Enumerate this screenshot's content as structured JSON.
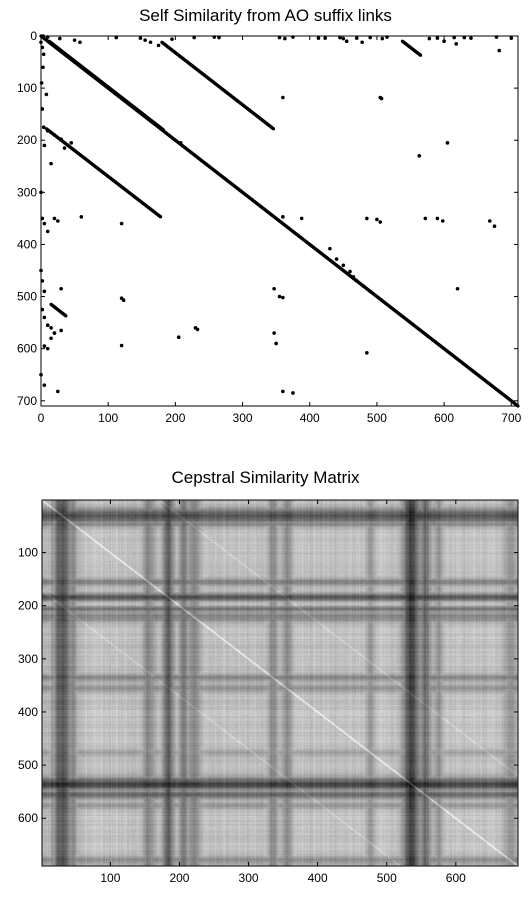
{
  "chart_data": [
    {
      "type": "scatter",
      "title": "Self Similarity from AO suffix links",
      "xlabel": "",
      "ylabel": "",
      "xlim": [
        0,
        710
      ],
      "ylim": [
        0,
        710
      ],
      "y_axis_inverted": true,
      "grid": false,
      "xticks": [
        "0",
        "100",
        "200",
        "300",
        "400",
        "500",
        "600",
        "700"
      ],
      "yticks": [
        "0",
        "100",
        "200",
        "300",
        "400",
        "500",
        "600",
        "700"
      ],
      "segments": [
        {
          "name": "",
          "x0": 0,
          "y0": 0,
          "x1": 710,
          "y1": 710
        },
        {
          "name": "",
          "x0": 12,
          "y0": 10,
          "x1": 182,
          "y1": 180
        },
        {
          "name": "",
          "x0": 180,
          "y0": 12,
          "x1": 346,
          "y1": 178
        },
        {
          "name": "",
          "x0": 8,
          "y0": 178,
          "x1": 178,
          "y1": 347
        },
        {
          "name": "",
          "x0": 538,
          "y0": 10,
          "x1": 565,
          "y1": 37
        },
        {
          "name": "",
          "x0": 15,
          "y0": 515,
          "x1": 37,
          "y1": 537
        }
      ],
      "points": [
        [
          3,
          0
        ],
        [
          10,
          2
        ],
        [
          28,
          5
        ],
        [
          50,
          8
        ],
        [
          58,
          12
        ],
        [
          112,
          3
        ],
        [
          148,
          4
        ],
        [
          155,
          8
        ],
        [
          163,
          12
        ],
        [
          175,
          18
        ],
        [
          195,
          6
        ],
        [
          228,
          3
        ],
        [
          258,
          2
        ],
        [
          265,
          3
        ],
        [
          355,
          3
        ],
        [
          363,
          5
        ],
        [
          375,
          2
        ],
        [
          413,
          4
        ],
        [
          423,
          4
        ],
        [
          445,
          3
        ],
        [
          450,
          5
        ],
        [
          455,
          10
        ],
        [
          470,
          4
        ],
        [
          478,
          12
        ],
        [
          490,
          3
        ],
        [
          508,
          5
        ],
        [
          515,
          2
        ],
        [
          578,
          5
        ],
        [
          590,
          4
        ],
        [
          600,
          10
        ],
        [
          615,
          3
        ],
        [
          618,
          15
        ],
        [
          630,
          3
        ],
        [
          640,
          4
        ],
        [
          678,
          2
        ],
        [
          682,
          28
        ],
        [
          700,
          4
        ],
        [
          0,
          12
        ],
        [
          2,
          22
        ],
        [
          4,
          35
        ],
        [
          3,
          60
        ],
        [
          1,
          90
        ],
        [
          8,
          112
        ],
        [
          2,
          140
        ],
        [
          4,
          175
        ],
        [
          10,
          182
        ],
        [
          20,
          190
        ],
        [
          30,
          198
        ],
        [
          45,
          205
        ],
        [
          5,
          210
        ],
        [
          15,
          245
        ],
        [
          35,
          215
        ],
        [
          360,
          118
        ],
        [
          505,
          118
        ],
        [
          507,
          120
        ],
        [
          563,
          230
        ],
        [
          208,
          205
        ],
        [
          605,
          205
        ],
        [
          0,
          300
        ],
        [
          2,
          350
        ],
        [
          5,
          360
        ],
        [
          10,
          375
        ],
        [
          20,
          350
        ],
        [
          25,
          355
        ],
        [
          60,
          347
        ],
        [
          120,
          360
        ],
        [
          360,
          347
        ],
        [
          388,
          350
        ],
        [
          485,
          350
        ],
        [
          500,
          352
        ],
        [
          505,
          357
        ],
        [
          572,
          350
        ],
        [
          590,
          350
        ],
        [
          598,
          355
        ],
        [
          668,
          355
        ],
        [
          675,
          365
        ],
        [
          430,
          408
        ],
        [
          440,
          428
        ],
        [
          450,
          440
        ],
        [
          460,
          452
        ],
        [
          465,
          462
        ],
        [
          470,
          470
        ],
        [
          480,
          480
        ],
        [
          490,
          490
        ],
        [
          0,
          450
        ],
        [
          2,
          470
        ],
        [
          5,
          490
        ],
        [
          30,
          485
        ],
        [
          120,
          503
        ],
        [
          123,
          507
        ],
        [
          347,
          485
        ],
        [
          355,
          500
        ],
        [
          360,
          502
        ],
        [
          2,
          525
        ],
        [
          5,
          540
        ],
        [
          10,
          555
        ],
        [
          15,
          560
        ],
        [
          20,
          570
        ],
        [
          15,
          580
        ],
        [
          5,
          595
        ],
        [
          10,
          600
        ],
        [
          20,
          570
        ],
        [
          30,
          565
        ],
        [
          120,
          594
        ],
        [
          205,
          578
        ],
        [
          230,
          560
        ],
        [
          233,
          563
        ],
        [
          347,
          570
        ],
        [
          350,
          590
        ],
        [
          485,
          608
        ],
        [
          620,
          485
        ],
        [
          0,
          650
        ],
        [
          5,
          670
        ],
        [
          25,
          682
        ],
        [
          360,
          682
        ],
        [
          375,
          685
        ]
      ]
    },
    {
      "type": "heatmap",
      "title": "Cepstral Similarity Matrix",
      "xlabel": "",
      "ylabel": "",
      "xlim": [
        1,
        690
      ],
      "ylim": [
        1,
        690
      ],
      "y_axis_inverted": true,
      "xticks": [
        "100",
        "200",
        "300",
        "400",
        "500",
        "600"
      ],
      "yticks": [
        "100",
        "200",
        "300",
        "400",
        "500",
        "600"
      ],
      "colormap": "gray",
      "dark_bands": [
        {
          "center": 30,
          "width": 14,
          "strength": 0.75
        },
        {
          "center": 45,
          "width": 6,
          "strength": 0.4
        },
        {
          "center": 155,
          "width": 8,
          "strength": 0.45
        },
        {
          "center": 183,
          "width": 8,
          "strength": 0.7
        },
        {
          "center": 220,
          "width": 10,
          "strength": 0.45
        },
        {
          "center": 205,
          "width": 6,
          "strength": 0.55
        },
        {
          "center": 335,
          "width": 8,
          "strength": 0.4
        },
        {
          "center": 355,
          "width": 8,
          "strength": 0.35
        },
        {
          "center": 475,
          "width": 6,
          "strength": 0.3
        },
        {
          "center": 535,
          "width": 12,
          "strength": 0.85
        },
        {
          "center": 555,
          "width": 8,
          "strength": 0.6
        },
        {
          "center": 575,
          "width": 6,
          "strength": 0.35
        },
        {
          "center": 678,
          "width": 8,
          "strength": 0.35
        }
      ],
      "diagonals": [
        {
          "offset": 0,
          "strength": 0.9
        },
        {
          "offset": 170,
          "strength": 0.35
        },
        {
          "offset": -170,
          "strength": 0.35
        }
      ]
    }
  ]
}
